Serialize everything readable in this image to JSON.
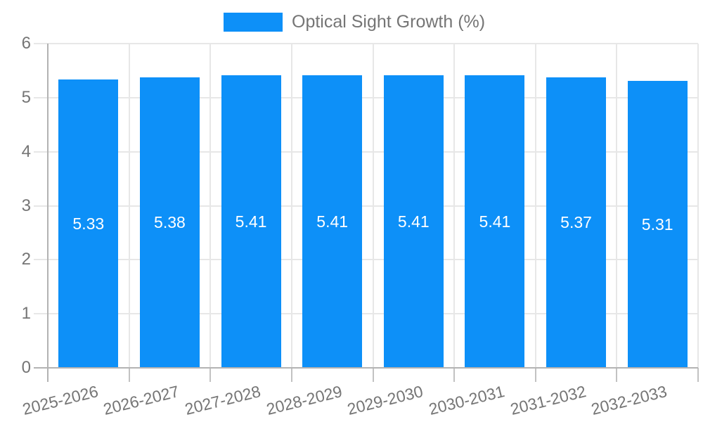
{
  "legend": {
    "label": "Optical Sight Growth (%)"
  },
  "colors": {
    "bar": "#0d90f8",
    "bar_label": "#ffffff",
    "grid": "#e7e7e7",
    "axis": "#b3b3b3",
    "tick": "#c2c2c2",
    "text": "#757575"
  },
  "chart_data": {
    "type": "bar",
    "title": "Optical Sight Growth (%)",
    "categories": [
      "2025-2026",
      "2026-2027",
      "2027-2028",
      "2028-2029",
      "2029-2030",
      "2030-2031",
      "2031-2032",
      "2032-2033"
    ],
    "values": [
      5.33,
      5.38,
      5.41,
      5.41,
      5.41,
      5.41,
      5.37,
      5.31
    ],
    "bar_labels": [
      "5.33",
      "5.38",
      "5.41",
      "5.41",
      "5.41",
      "5.41",
      "5.37",
      "5.31"
    ],
    "xlabel": "",
    "ylabel": "",
    "ylim": [
      0,
      6
    ],
    "yticks": [
      0,
      1,
      2,
      3,
      4,
      5,
      6
    ],
    "grid": true,
    "legend_position": "top-center",
    "series": [
      {
        "name": "Optical Sight Growth (%)",
        "values": [
          5.33,
          5.38,
          5.41,
          5.41,
          5.41,
          5.41,
          5.37,
          5.31
        ]
      }
    ]
  }
}
